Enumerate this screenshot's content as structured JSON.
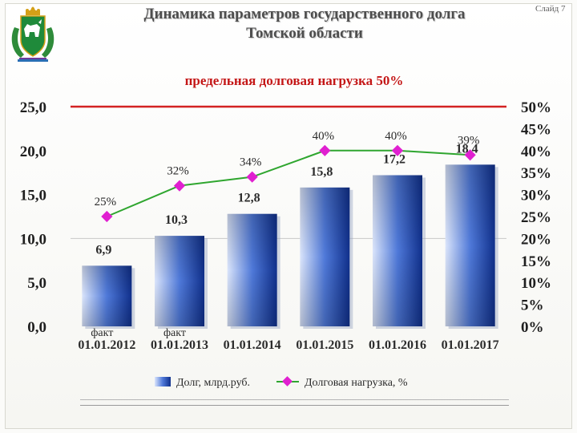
{
  "header": {
    "title_line1": "Динамика параметров государственного долга",
    "title_line2": "Томской области",
    "slide_label": "Слайд 7"
  },
  "colors": {
    "bar_light": "#dbe5fb",
    "bar_mid": "#4f79d9",
    "bar_dark": "#10308c",
    "line": "#2fa62f",
    "marker": "#e020d0",
    "limit_line": "#d42222",
    "limit_text": "#c41717"
  },
  "chart_data": {
    "type": "bar",
    "categories": [
      "01.01.2012",
      "01.01.2013",
      "01.01.2014",
      "01.01.2015",
      "01.01.2016",
      "01.01.2017"
    ],
    "category_notes": [
      "факт",
      "факт",
      "",
      "",
      "",
      ""
    ],
    "ylim": [
      0,
      25
    ],
    "y_ticks": [
      "0,0",
      "5,0",
      "10,0",
      "15,0",
      "20,0",
      "25,0"
    ],
    "y2lim": [
      0,
      50
    ],
    "y2_ticks": [
      "0%",
      "5%",
      "10%",
      "15%",
      "20%",
      "25%",
      "30%",
      "35%",
      "40%",
      "45%",
      "50%"
    ],
    "series": [
      {
        "name": "Долг, млрд.руб.",
        "type": "bar",
        "values": [
          6.9,
          10.3,
          12.8,
          15.8,
          17.2,
          18.4
        ],
        "labels": [
          "6,9",
          "10,3",
          "12,8",
          "15,8",
          "17,2",
          "18,4"
        ]
      },
      {
        "name": "Долговая нагрузка, %",
        "type": "line",
        "axis": "right",
        "values": [
          25,
          32,
          34,
          40,
          40,
          39
        ],
        "labels": [
          "25%",
          "32%",
          "34%",
          "40%",
          "40%",
          "39%"
        ]
      }
    ],
    "reference_line": {
      "label": "предельная долговая нагрузка 50%",
      "value_percent": 50
    },
    "legend_position": "bottom"
  }
}
